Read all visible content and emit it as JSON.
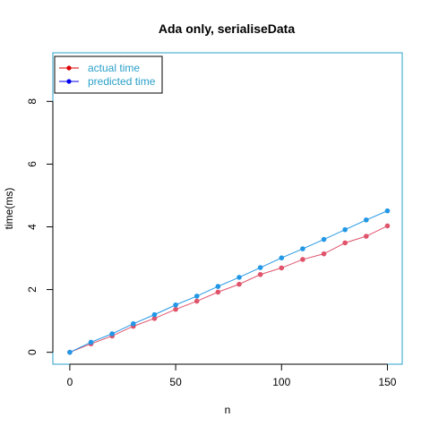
{
  "chart_data": {
    "type": "line",
    "title": "Ada only, serialiseData",
    "xlabel": "n",
    "ylabel": "time(ms)",
    "xlim": [
      -8,
      157
    ],
    "ylim": [
      -0.38,
      9.55
    ],
    "xticks": [
      "0",
      "50",
      "100",
      "150"
    ],
    "xtick_values": [
      0,
      50,
      100,
      150
    ],
    "yticks": [
      "0",
      "2",
      "4",
      "6",
      "8"
    ],
    "ytick_values": [
      0,
      2,
      4,
      6,
      8
    ],
    "grid": false,
    "legend_position": "top-left",
    "x": [
      0,
      10,
      20,
      30,
      40,
      50,
      60,
      70,
      80,
      90,
      100,
      110,
      120,
      130,
      140,
      150
    ],
    "series": [
      {
        "name": "actual time",
        "legend_color": "#dd0000",
        "color": "#df536b",
        "values": [
          0.0,
          0.27,
          0.52,
          0.83,
          1.08,
          1.37,
          1.63,
          1.92,
          2.17,
          2.48,
          2.69,
          2.96,
          3.14,
          3.49,
          3.7,
          4.03
        ]
      },
      {
        "name": "predicted time",
        "legend_color": "#0000ee",
        "color": "#2297e6",
        "values": [
          0.0,
          0.32,
          0.59,
          0.91,
          1.2,
          1.51,
          1.79,
          2.1,
          2.39,
          2.7,
          3.01,
          3.3,
          3.6,
          3.91,
          4.22,
          4.51
        ]
      }
    ],
    "legend_text_color": "#2aa0c8",
    "axis_color": "#000000",
    "box_color": "#2aa0c8"
  }
}
